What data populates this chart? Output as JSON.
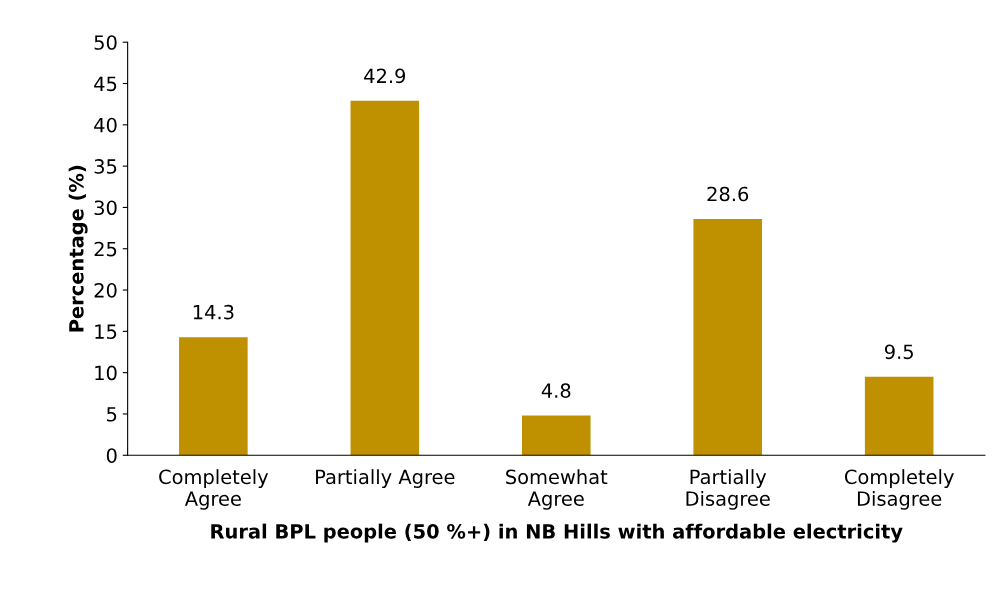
{
  "chart_data": {
    "type": "bar",
    "xlabel": "Rural BPL people (50 %+) in NB Hills with affordable electricity",
    "ylabel": "Percentage (%)",
    "categories": [
      "Completely\nAgree",
      "Partially Agree",
      "Somewhat\nAgree",
      "Partially\nDisagree",
      "Completely\nDisagree"
    ],
    "values": [
      14.3,
      42.9,
      4.8,
      28.6,
      9.5
    ],
    "color": "#bf9000",
    "ylim": [
      0,
      50
    ],
    "yticks": [
      0,
      5,
      10,
      15,
      20,
      25,
      30,
      35,
      40,
      45,
      50
    ],
    "data_labels": true,
    "grid": false,
    "legend": false
  }
}
